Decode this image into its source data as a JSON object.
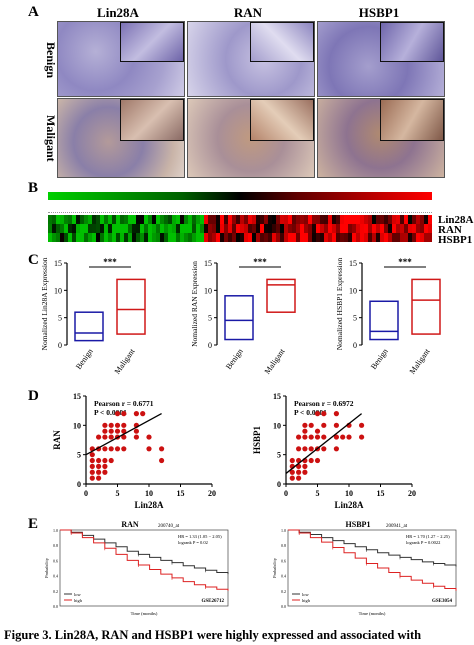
{
  "figure": {
    "panel_a": {
      "letter": "A",
      "columns": [
        "Lin28A",
        "RAN",
        "HSBP1"
      ],
      "rows": [
        "Benign",
        "Maligant"
      ]
    },
    "panel_b": {
      "letter": "B",
      "genes": [
        "Lin28A",
        "RAN",
        "HSBP1"
      ],
      "colors": {
        "low": "#00c000",
        "mid": "#000000",
        "high": "#ff0000"
      }
    },
    "panel_c": {
      "letter": "C",
      "significance": "***",
      "groups": [
        "Benign",
        "Maligant"
      ],
      "group_colors": {
        "Benign": "#1a1aa6",
        "Maligant": "#d01818"
      }
    },
    "panel_d": {
      "letter": "D",
      "xlabel": "Lin28A",
      "point_color": "#cc1111"
    },
    "panel_e": {
      "letter": "E",
      "left_title": "RAN",
      "left_probe": "200740_at",
      "right_title": "HSBP1",
      "right_probe": "200941_at",
      "left_dataset": "GSE26712",
      "right_dataset": "GSE3054"
    },
    "caption": "Figure 3. Lin28A, RAN and HSBP1 were highly expressed and associated with"
  },
  "chart_data": [
    {
      "type": "box",
      "title": "",
      "ylabel": "Nomalized Lin28A Expression",
      "categories": [
        "Benign",
        "Maligant"
      ],
      "ylim": [
        0,
        15
      ],
      "yticks": [
        0,
        5,
        10,
        15
      ],
      "boxes": [
        {
          "name": "Benign",
          "min": 0,
          "q1": 0.8,
          "median": 2.2,
          "q3": 6,
          "max": 6
        },
        {
          "name": "Maligant",
          "min": 1.5,
          "q1": 2,
          "median": 6.5,
          "q3": 12,
          "max": 12
        }
      ]
    },
    {
      "type": "box",
      "title": "",
      "ylabel": "Nomalized RAN Expression",
      "categories": [
        "Benign",
        "Maligant"
      ],
      "ylim": [
        0,
        15
      ],
      "yticks": [
        0,
        5,
        10,
        15
      ],
      "boxes": [
        {
          "name": "Benign",
          "min": 1,
          "q1": 1,
          "median": 4.5,
          "q3": 9,
          "max": 9
        },
        {
          "name": "Maligant",
          "min": 6,
          "q1": 6,
          "median": 11,
          "q3": 12,
          "max": 12.5
        }
      ]
    },
    {
      "type": "box",
      "title": "",
      "ylabel": "Nomalized HSBP1 Expression",
      "categories": [
        "Benign",
        "Maligant"
      ],
      "ylim": [
        0,
        15
      ],
      "yticks": [
        0,
        5,
        10,
        15
      ],
      "boxes": [
        {
          "name": "Benign",
          "min": 0.8,
          "q1": 1,
          "median": 2.5,
          "q3": 8,
          "max": 8
        },
        {
          "name": "Maligant",
          "min": 2,
          "q1": 2,
          "median": 8.2,
          "q3": 12,
          "max": 12
        }
      ]
    },
    {
      "type": "scatter",
      "title": "",
      "xlabel": "Lin28A",
      "ylabel": "RAN",
      "annotation": [
        "Pearson r  = 0.6771",
        "P < 0.0001"
      ],
      "xlim": [
        0,
        20
      ],
      "ylim": [
        0,
        15
      ],
      "xticks": [
        0,
        5,
        10,
        15,
        20
      ],
      "yticks": [
        0,
        5,
        10,
        15
      ],
      "fit": {
        "x": [
          0,
          12
        ],
        "y": [
          5,
          12
        ]
      },
      "points": [
        [
          1,
          2
        ],
        [
          1,
          3
        ],
        [
          1,
          4
        ],
        [
          1,
          5
        ],
        [
          1,
          6
        ],
        [
          1,
          1
        ],
        [
          2,
          1
        ],
        [
          2,
          2
        ],
        [
          2,
          3
        ],
        [
          2,
          4
        ],
        [
          2,
          6
        ],
        [
          2,
          8
        ],
        [
          3,
          2
        ],
        [
          3,
          3
        ],
        [
          3,
          4
        ],
        [
          3,
          6
        ],
        [
          3,
          8
        ],
        [
          3,
          9
        ],
        [
          3,
          10
        ],
        [
          4,
          4
        ],
        [
          4,
          6
        ],
        [
          4,
          8
        ],
        [
          4,
          9
        ],
        [
          4,
          10
        ],
        [
          5,
          6
        ],
        [
          5,
          8
        ],
        [
          5,
          9
        ],
        [
          5,
          10
        ],
        [
          5,
          12
        ],
        [
          6,
          6
        ],
        [
          6,
          8
        ],
        [
          6,
          9
        ],
        [
          6,
          10
        ],
        [
          6,
          12
        ],
        [
          8,
          8
        ],
        [
          8,
          9
        ],
        [
          8,
          10
        ],
        [
          8,
          12
        ],
        [
          9,
          12
        ],
        [
          10,
          6
        ],
        [
          10,
          8
        ],
        [
          12,
          4
        ],
        [
          12,
          6
        ]
      ]
    },
    {
      "type": "scatter",
      "title": "",
      "xlabel": "Lin28A",
      "ylabel": "HSBP1",
      "annotation": [
        "Pearson r  = 0.6972",
        "P < 0.0001"
      ],
      "xlim": [
        0,
        20
      ],
      "ylim": [
        0,
        15
      ],
      "xticks": [
        0,
        5,
        10,
        15,
        20
      ],
      "yticks": [
        0,
        5,
        10,
        15
      ],
      "fit": {
        "x": [
          0,
          12
        ],
        "y": [
          1.8,
          12
        ]
      },
      "points": [
        [
          1,
          1
        ],
        [
          1,
          2
        ],
        [
          1,
          3
        ],
        [
          1,
          4
        ],
        [
          2,
          1
        ],
        [
          2,
          2
        ],
        [
          2,
          3
        ],
        [
          2,
          4
        ],
        [
          2,
          6
        ],
        [
          2,
          8
        ],
        [
          3,
          2
        ],
        [
          3,
          3
        ],
        [
          3,
          4
        ],
        [
          3,
          6
        ],
        [
          3,
          8
        ],
        [
          3,
          9
        ],
        [
          3,
          10
        ],
        [
          4,
          4
        ],
        [
          4,
          6
        ],
        [
          4,
          8
        ],
        [
          4,
          10
        ],
        [
          5,
          4
        ],
        [
          5,
          6
        ],
        [
          5,
          8
        ],
        [
          5,
          9
        ],
        [
          5,
          12
        ],
        [
          6,
          6
        ],
        [
          6,
          8
        ],
        [
          6,
          10
        ],
        [
          6,
          12
        ],
        [
          8,
          6
        ],
        [
          8,
          8
        ],
        [
          8,
          10
        ],
        [
          8,
          12
        ],
        [
          9,
          8
        ],
        [
          10,
          8
        ],
        [
          10,
          10
        ],
        [
          12,
          8
        ],
        [
          12,
          10
        ]
      ]
    },
    {
      "type": "line",
      "title": "RAN",
      "xlabel": "Time (months)",
      "ylabel": "Probability",
      "annotation": [
        "HR = 1.33 (1.05 − 2.05)",
        "logrank P = 0.02"
      ],
      "legend": "bottom-left",
      "xlim": [
        0,
        150
      ],
      "ylim": [
        0,
        1
      ],
      "series": [
        {
          "name": "low",
          "color": "#333333",
          "x": [
            0,
            10,
            20,
            30,
            40,
            50,
            60,
            70,
            80,
            90,
            100,
            110,
            120,
            130,
            140,
            150
          ],
          "y": [
            1,
            0.97,
            0.93,
            0.88,
            0.83,
            0.78,
            0.72,
            0.68,
            0.64,
            0.6,
            0.57,
            0.53,
            0.5,
            0.47,
            0.44,
            0.42
          ]
        },
        {
          "name": "high",
          "color": "#dd2222",
          "x": [
            0,
            10,
            20,
            30,
            40,
            50,
            60,
            70,
            80,
            90,
            100,
            110,
            120,
            130,
            140,
            150
          ],
          "y": [
            1,
            0.96,
            0.9,
            0.83,
            0.76,
            0.68,
            0.6,
            0.54,
            0.48,
            0.42,
            0.37,
            0.32,
            0.28,
            0.25,
            0.22,
            0.2
          ]
        }
      ]
    },
    {
      "type": "line",
      "title": "HSBP1",
      "xlabel": "Time (months)",
      "ylabel": "Probability",
      "annotation": [
        "HR = 1.70 (1.27 − 2.25)",
        "logrank P = 0.0022"
      ],
      "legend": "bottom-left",
      "xlim": [
        0,
        150
      ],
      "ylim": [
        0,
        1
      ],
      "series": [
        {
          "name": "low",
          "color": "#333333",
          "x": [
            0,
            10,
            20,
            30,
            40,
            50,
            60,
            70,
            80,
            90,
            100,
            110,
            120,
            130,
            140,
            150
          ],
          "y": [
            1,
            0.97,
            0.94,
            0.9,
            0.86,
            0.82,
            0.78,
            0.74,
            0.7,
            0.67,
            0.64,
            0.61,
            0.58,
            0.56,
            0.54,
            0.52
          ]
        },
        {
          "name": "high",
          "color": "#dd2222",
          "x": [
            0,
            10,
            20,
            30,
            40,
            50,
            60,
            70,
            80,
            90,
            100,
            110,
            120,
            130,
            140,
            150
          ],
          "y": [
            1,
            0.96,
            0.9,
            0.84,
            0.77,
            0.7,
            0.63,
            0.56,
            0.5,
            0.44,
            0.39,
            0.34,
            0.3,
            0.26,
            0.23,
            0.2
          ]
        }
      ]
    }
  ]
}
